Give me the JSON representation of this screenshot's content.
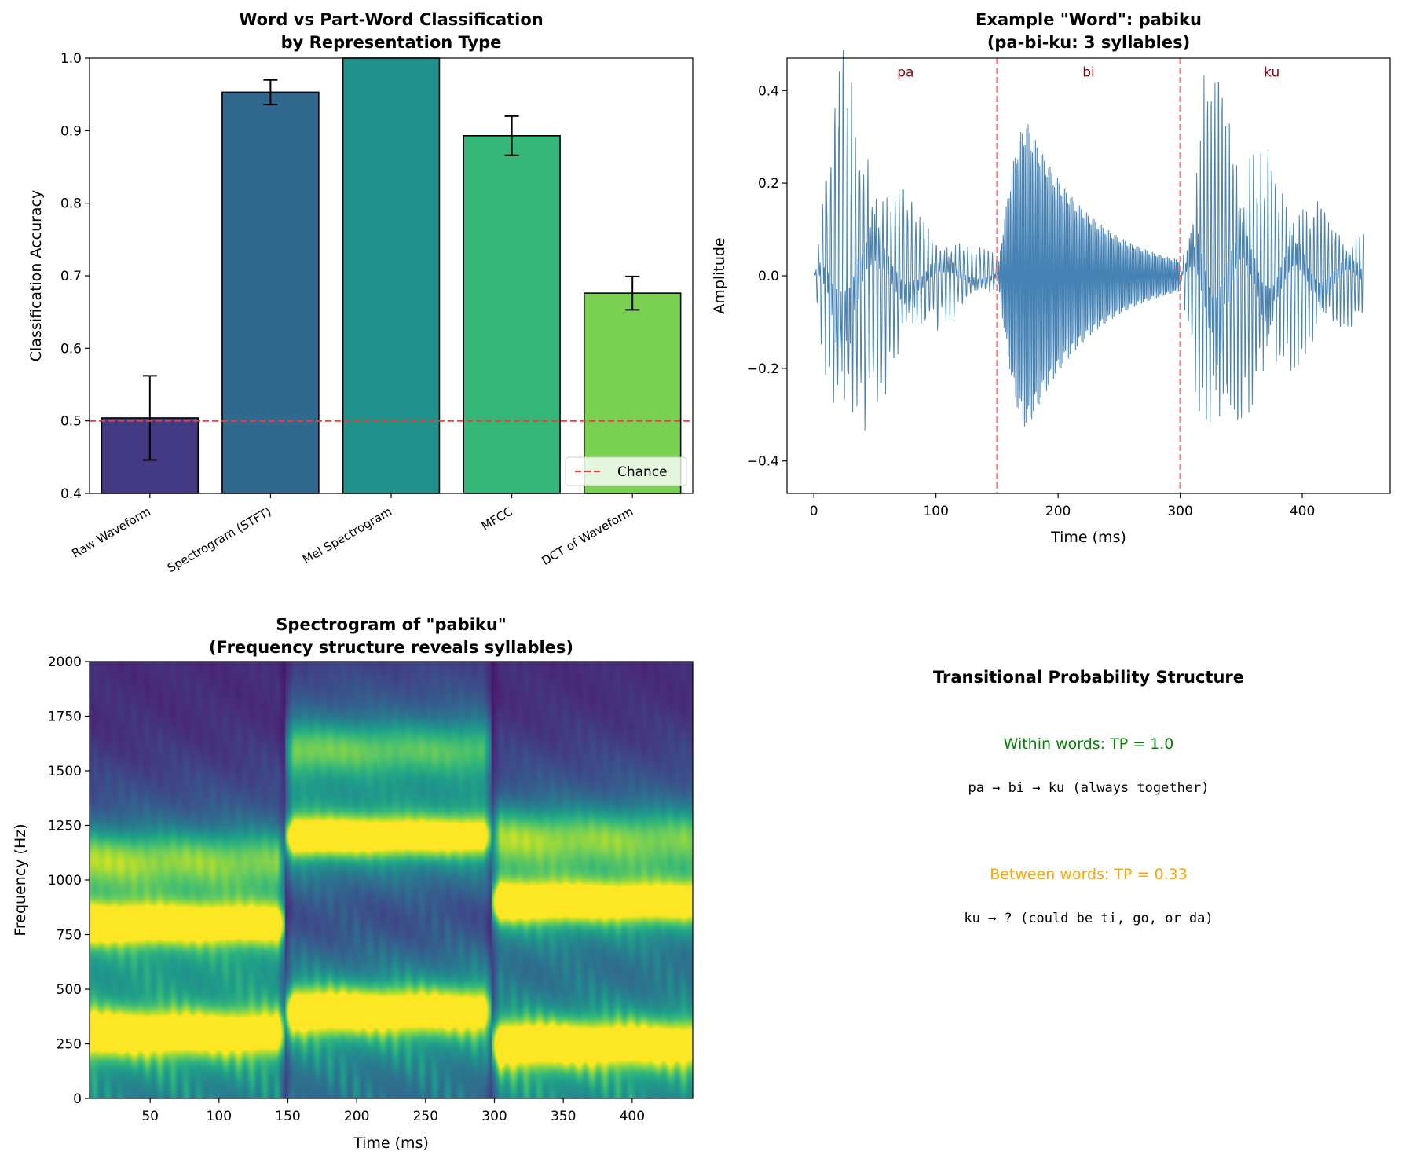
{
  "chart_data": [
    {
      "type": "bar",
      "title": "Word vs Part-Word Classification\nby Representation Type",
      "title_lines": [
        "Word vs Part-Word Classification",
        "by Representation Type"
      ],
      "xlabel": "",
      "ylabel": "Classification Accuracy",
      "ylim": [
        0.4,
        1.0
      ],
      "yticks": [
        "0.4",
        "0.5",
        "0.6",
        "0.7",
        "0.8",
        "0.9",
        "1.0"
      ],
      "categories": [
        "Raw Waveform",
        "Spectrogram (STFT)",
        "Mel Spectrogram",
        "MFCC",
        "DCT of Waveform"
      ],
      "values": [
        0.504,
        0.953,
        1.0,
        0.893,
        0.676
      ],
      "errors": [
        0.058,
        0.017,
        0.0,
        0.027,
        0.023
      ],
      "colors": [
        "#443983",
        "#31688e",
        "#21918c",
        "#35b779",
        "#7ad151"
      ],
      "reference_line": {
        "value": 0.5,
        "label": "Chance",
        "color": "#e8413c"
      },
      "legend": {
        "position": "bottom-right",
        "entries": [
          "Chance"
        ]
      }
    },
    {
      "type": "line",
      "title": "Example \"Word\": pabiku\n(pa-bi-ku: 3 syllables)",
      "title_lines": [
        "Example \"Word\": pabiku",
        "(pa-bi-ku: 3 syllables)"
      ],
      "xlabel": "Time (ms)",
      "ylabel": "Amplitude",
      "xlim": [
        -22,
        472
      ],
      "ylim": [
        -0.47,
        0.47
      ],
      "xticks": [
        "0",
        "100",
        "200",
        "300",
        "400"
      ],
      "yticks": [
        "−0.4",
        "−0.2",
        "0.0",
        "0.2",
        "0.4"
      ],
      "syllable_boundaries": [
        150,
        300
      ],
      "syllable_labels": [
        "pa",
        "bi",
        "ku"
      ],
      "segments": [
        {
          "syllable": "pa",
          "start_ms": 0,
          "end_ms": 150,
          "peak_amplitude": 0.43,
          "peak_ms": 25
        },
        {
          "syllable": "bi",
          "start_ms": 150,
          "end_ms": 300,
          "peak_amplitude": 0.33,
          "peak_ms": 175
        },
        {
          "syllable": "ku",
          "start_ms": 300,
          "end_ms": 450,
          "peak_amplitude": 0.42,
          "peak_ms": 325
        }
      ],
      "line_color": "#4682b4",
      "boundary_color": "#f08080"
    },
    {
      "type": "heatmap",
      "title": "Spectrogram of \"pabiku\"\n(Frequency structure reveals syllables)",
      "title_lines": [
        "Spectrogram of \"pabiku\"",
        "(Frequency structure reveals syllables)"
      ],
      "xlabel": "Time (ms)",
      "ylabel": "Frequency (Hz)",
      "xlim": [
        6,
        444
      ],
      "ylim": [
        0,
        2000
      ],
      "xticks": [
        "50",
        "100",
        "150",
        "200",
        "250",
        "300",
        "350",
        "400"
      ],
      "yticks": [
        "0",
        "250",
        "500",
        "750",
        "1000",
        "1250",
        "1500",
        "1750",
        "2000"
      ],
      "colormap": "viridis",
      "formants_hz": [
        {
          "segment": "pa",
          "start_ms": 0,
          "end_ms": 148,
          "bands": [
            300,
            800,
            1100
          ]
        },
        {
          "segment": "bi",
          "start_ms": 148,
          "end_ms": 298,
          "bands": [
            400,
            1200,
            1600
          ]
        },
        {
          "segment": "ku",
          "start_ms": 298,
          "end_ms": 450,
          "bands": [
            250,
            900,
            1200
          ]
        }
      ]
    }
  ],
  "text_panel": {
    "title": "Transitional Probability Structure",
    "within_label": "Within words: TP = 1.0",
    "within_example": "pa → bi → ku  (always together)",
    "between_label": "Between words: TP = 0.33",
    "between_example": "ku → ? (could be ti, go, or da)",
    "within_color": "#008000",
    "between_color": "#ffa500"
  }
}
